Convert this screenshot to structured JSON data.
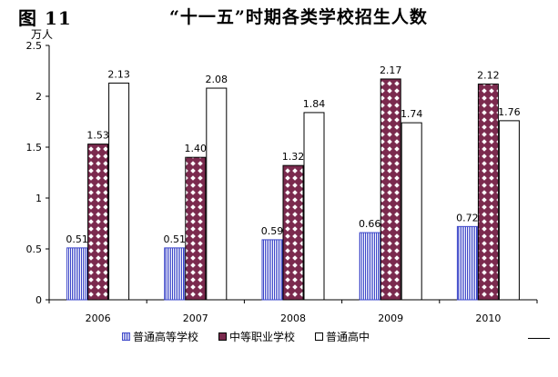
{
  "header": {
    "figure_label": "图 11",
    "title": "“十一五”时期各类学校招生人数"
  },
  "chart_data": {
    "type": "bar",
    "title": "“十一五”时期各类学校招生人数",
    "ylabel": "万人",
    "xlabel": "",
    "categories": [
      "2006",
      "2007",
      "2008",
      "2009",
      "2010"
    ],
    "ylim": [
      0,
      2.5
    ],
    "yticks": [
      "0",
      "0.5",
      "1",
      "1.5",
      "2",
      "2.5"
    ],
    "grid": false,
    "legend_position": "bottom",
    "series": [
      {
        "name": "普通高等学校",
        "values": [
          0.51,
          0.51,
          0.59,
          0.66,
          0.72
        ],
        "labels": [
          "0.51",
          "0.51",
          "0.59",
          "0.66",
          "0.72"
        ],
        "color": "#3b45c8"
      },
      {
        "name": "中等职业学校",
        "values": [
          1.53,
          1.4,
          1.32,
          2.17,
          2.12
        ],
        "labels": [
          "1.53",
          "1.40",
          "1.32",
          "2.17",
          "2.12"
        ],
        "color": "#7b2a4e"
      },
      {
        "name": "普通高中",
        "values": [
          2.13,
          2.08,
          1.84,
          1.74,
          1.76
        ],
        "labels": [
          "2.13",
          "2.08",
          "1.84",
          "1.74",
          "1.76"
        ],
        "color": "#ffffff"
      }
    ]
  }
}
